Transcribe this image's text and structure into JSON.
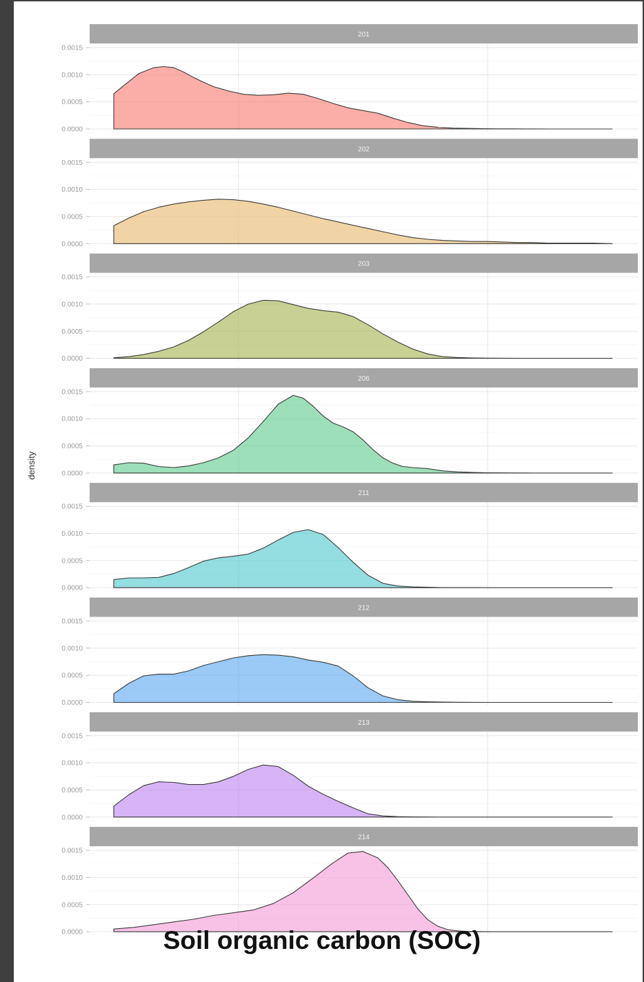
{
  "chart_data": {
    "type": "area",
    "chart_kind": "faceted density plot",
    "ylabel": "density",
    "xlabel": "Soil organic carbon (SOC)",
    "ylim": [
      0,
      0.0015
    ],
    "yticks": [
      "0.0000",
      "0.0005",
      "0.0010",
      "0.0015"
    ],
    "grid": true,
    "x_range": [
      0,
      100
    ],
    "panels": [
      {
        "label": "201",
        "color": "#F8766D",
        "x": [
          0,
          2,
          5,
          8,
          10,
          12,
          14,
          16,
          18,
          20,
          23,
          26,
          29,
          32,
          35,
          38,
          41,
          44,
          47,
          50,
          53,
          56,
          59,
          62,
          65,
          68,
          71,
          74,
          77,
          80,
          84,
          88,
          92,
          96,
          100
        ],
        "y": [
          0.00065,
          0.0008,
          0.00102,
          0.00113,
          0.00115,
          0.00113,
          0.00105,
          0.00095,
          0.00086,
          0.00078,
          0.0007,
          0.00064,
          0.00062,
          0.00063,
          0.00066,
          0.00064,
          0.00056,
          0.00047,
          0.00039,
          0.00034,
          0.00029,
          0.0002,
          0.00012,
          6e-05,
          3e-05,
          1.5e-05,
          1e-05,
          5e-06,
          3e-06,
          2e-06,
          1e-06,
          5e-07,
          3e-07,
          2e-07,
          1e-07
        ]
      },
      {
        "label": "202",
        "color": "#E7B86B",
        "x": [
          0,
          3,
          6,
          9,
          12,
          15,
          18,
          21,
          24,
          27,
          30,
          33,
          36,
          39,
          42,
          45,
          48,
          51,
          54,
          57,
          60,
          63,
          66,
          69,
          72,
          75,
          78,
          81,
          84,
          87,
          90,
          93,
          96,
          100
        ],
        "y": [
          0.00033,
          0.00047,
          0.00059,
          0.00067,
          0.00073,
          0.00077,
          0.0008,
          0.00082,
          0.00081,
          0.00078,
          0.00073,
          0.00067,
          0.0006,
          0.00053,
          0.00046,
          0.0004,
          0.00034,
          0.00028,
          0.00022,
          0.00016,
          0.00011,
          8e-05,
          6e-05,
          5e-05,
          4e-05,
          4e-05,
          3e-05,
          2e-05,
          2e-05,
          1e-05,
          1e-05,
          1e-05,
          1e-05,
          0.0
        ]
      },
      {
        "label": "203",
        "color": "#A3B24B",
        "x": [
          0,
          3,
          6,
          9,
          12,
          15,
          18,
          21,
          24,
          27,
          30,
          33,
          36,
          39,
          42,
          45,
          48,
          51,
          54,
          57,
          60,
          63,
          66,
          69,
          72,
          75,
          78,
          81,
          84,
          88,
          92,
          96,
          100
        ],
        "y": [
          1e-05,
          3e-05,
          7e-05,
          0.00013,
          0.00021,
          0.00033,
          0.00049,
          0.00067,
          0.00086,
          0.001,
          0.00107,
          0.00106,
          0.00099,
          0.00092,
          0.00088,
          0.00085,
          0.00077,
          0.00062,
          0.00045,
          0.0003,
          0.00017,
          8e-05,
          3e-05,
          1.5e-05,
          8e-06,
          4e-06,
          2e-06,
          1e-06,
          5e-07,
          2e-07,
          1e-07,
          0.0,
          0.0
        ]
      },
      {
        "label": "206",
        "color": "#5BC98A",
        "x": [
          0,
          3,
          6,
          9,
          12,
          15,
          18,
          21,
          24,
          27,
          30,
          33,
          36,
          38,
          40,
          42,
          44,
          46,
          48,
          50,
          52,
          54,
          56,
          58,
          60,
          63,
          66,
          69,
          72,
          75,
          78,
          81,
          84,
          88,
          92,
          96,
          100
        ],
        "y": [
          0.00015,
          0.00019,
          0.00018,
          0.00012,
          0.0001,
          0.00013,
          0.00019,
          0.00028,
          0.00042,
          0.00065,
          0.00095,
          0.00127,
          0.00143,
          0.00138,
          0.00123,
          0.00105,
          0.00092,
          0.00085,
          0.00076,
          0.00061,
          0.00043,
          0.00028,
          0.00018,
          0.00012,
          0.0001,
          8e-05,
          4e-05,
          2e-05,
          1e-05,
          5e-06,
          2e-06,
          1e-06,
          5e-07,
          2e-07,
          0.0,
          0.0,
          0.0
        ]
      },
      {
        "label": "211",
        "color": "#4DC7CC",
        "x": [
          0,
          3,
          6,
          9,
          12,
          15,
          18,
          21,
          24,
          27,
          30,
          33,
          36,
          39,
          42,
          45,
          48,
          51,
          54,
          57,
          60,
          63,
          66,
          69,
          72,
          75,
          78,
          81,
          84,
          88,
          92,
          96,
          100
        ],
        "y": [
          0.00015,
          0.00018,
          0.00018,
          0.00019,
          0.00026,
          0.00037,
          0.00049,
          0.00055,
          0.00058,
          0.00062,
          0.00073,
          0.00088,
          0.00102,
          0.00107,
          0.00098,
          0.00074,
          0.00047,
          0.00023,
          8e-05,
          3e-05,
          1.5e-05,
          7e-06,
          3e-06,
          2e-06,
          1e-06,
          5e-07,
          3e-07,
          2e-07,
          1e-07,
          0.0,
          0.0,
          0.0,
          0.0
        ]
      },
      {
        "label": "212",
        "color": "#56A6EE",
        "x": [
          0,
          3,
          6,
          9,
          12,
          15,
          18,
          21,
          24,
          27,
          30,
          33,
          36,
          39,
          42,
          45,
          48,
          51,
          54,
          57,
          60,
          63,
          66,
          69,
          72,
          75,
          78,
          81,
          84,
          88,
          92,
          96,
          100
        ],
        "y": [
          0.00016,
          0.00035,
          0.00049,
          0.00052,
          0.00052,
          0.00058,
          0.00068,
          0.00075,
          0.00082,
          0.00086,
          0.00088,
          0.00087,
          0.00084,
          0.00078,
          0.00074,
          0.00067,
          0.00049,
          0.00027,
          0.00012,
          5e-05,
          2e-05,
          1e-05,
          5e-06,
          2e-06,
          1e-06,
          5e-07,
          3e-07,
          2e-07,
          1e-07,
          0.0,
          0.0,
          0.0,
          0.0
        ]
      },
      {
        "label": "213",
        "color": "#BB82EE",
        "x": [
          0,
          3,
          6,
          9,
          12,
          15,
          18,
          21,
          24,
          27,
          30,
          33,
          36,
          39,
          42,
          45,
          48,
          51,
          54,
          57,
          60,
          63,
          66,
          69,
          72,
          75,
          78,
          81,
          84,
          88,
          92,
          96,
          100
        ],
        "y": [
          0.0002,
          0.00041,
          0.00058,
          0.00065,
          0.00064,
          0.0006,
          0.0006,
          0.00065,
          0.00075,
          0.00088,
          0.00096,
          0.00093,
          0.00077,
          0.00057,
          0.00042,
          0.00029,
          0.00017,
          6e-05,
          2e-05,
          8e-06,
          3e-06,
          1e-06,
          5e-07,
          3e-07,
          2e-07,
          1e-07,
          0.0,
          0.0,
          0.0,
          0.0,
          0.0,
          0.0,
          0.0
        ]
      },
      {
        "label": "214",
        "color": "#F39AD7",
        "x": [
          0,
          4,
          8,
          12,
          16,
          20,
          24,
          28,
          32,
          36,
          40,
          44,
          47,
          50,
          53,
          55,
          57,
          59,
          61,
          63,
          65,
          67,
          69,
          71,
          74,
          77,
          80,
          84,
          88,
          92,
          96,
          100
        ],
        "y": [
          5e-05,
          8e-05,
          0.00013,
          0.00018,
          0.00023,
          0.0003,
          0.00035,
          0.0004,
          0.00052,
          0.00072,
          0.00099,
          0.00127,
          0.00145,
          0.00148,
          0.00136,
          0.00118,
          0.00094,
          0.00068,
          0.00042,
          0.00022,
          0.0001,
          4e-05,
          1.5e-05,
          6e-06,
          2e-06,
          1e-06,
          5e-07,
          2e-07,
          1e-07,
          0.0,
          0.0,
          0.0
        ]
      }
    ]
  }
}
